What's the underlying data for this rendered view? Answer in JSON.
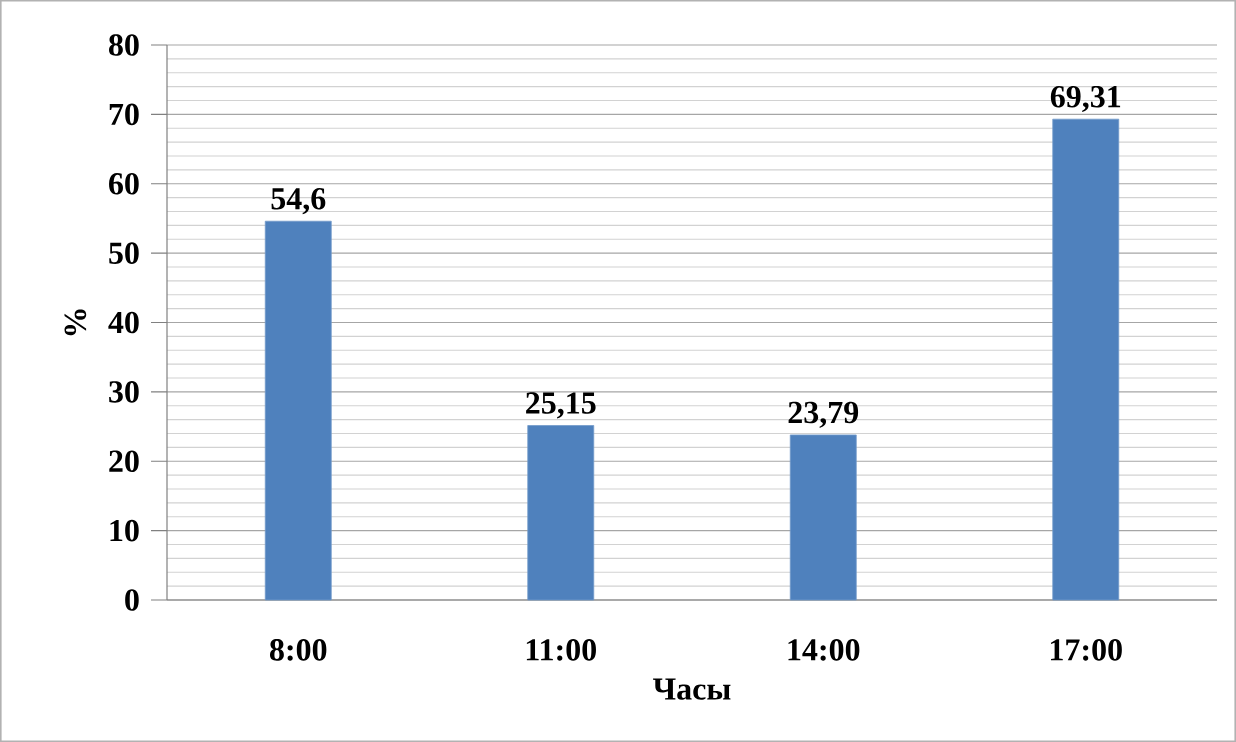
{
  "chart_data": {
    "type": "bar",
    "xlabel": "Часы",
    "ylabel": "%",
    "categories": [
      "8:00",
      "11:00",
      "14:00",
      "17:00"
    ],
    "values": [
      54.6,
      25.15,
      23.79,
      69.31
    ],
    "value_labels": [
      "54,6",
      "25,15",
      "23,79",
      "69,31"
    ],
    "color": "#4f81bd",
    "ylim": [
      0,
      80
    ],
    "yticks": [
      0,
      10,
      20,
      30,
      40,
      50,
      60,
      70,
      80
    ],
    "grid": "y"
  }
}
